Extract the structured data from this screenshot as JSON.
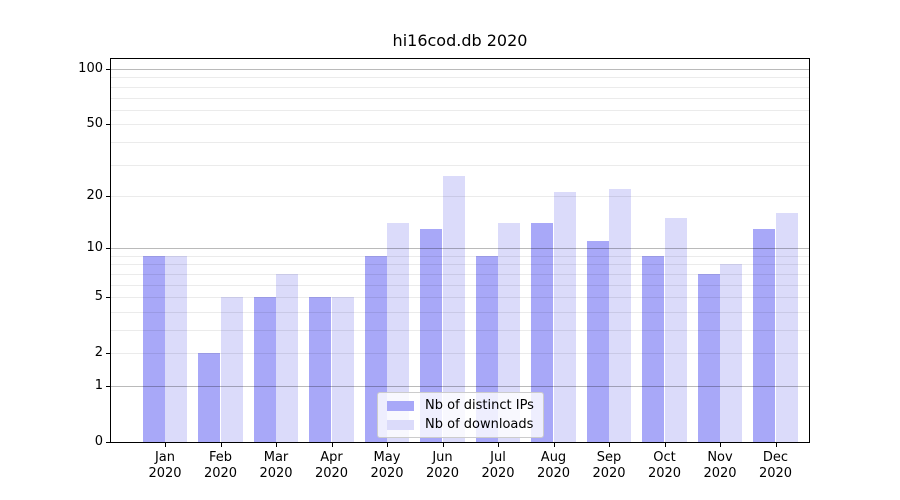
{
  "chart_data": {
    "type": "bar",
    "title": "hi16cod.db 2020",
    "categories": [
      "Jan",
      "Feb",
      "Mar",
      "Apr",
      "May",
      "Jun",
      "Jul",
      "Aug",
      "Sep",
      "Oct",
      "Nov",
      "Dec"
    ],
    "year_label": "2020",
    "series": [
      {
        "name": "Nb of distinct IPs",
        "color": "#a8a8f8",
        "values": [
          9,
          2,
          5,
          5,
          9,
          13,
          9,
          14,
          11,
          9,
          7,
          13
        ]
      },
      {
        "name": "Nb of downloads",
        "color": "#dbdbfa",
        "values": [
          9,
          5,
          7,
          5,
          14,
          26,
          14,
          21,
          22,
          15,
          8,
          16
        ]
      }
    ],
    "y_axis": {
      "scale": "log10(1+value)",
      "tick_values": [
        0,
        1,
        2,
        5,
        10,
        20,
        50,
        100
      ],
      "major_gridlines": [
        1,
        10,
        100
      ],
      "minor_gridlines": [
        2,
        3,
        4,
        5,
        6,
        7,
        8,
        9,
        20,
        30,
        40,
        50,
        60,
        70,
        80,
        90
      ],
      "ylim": [
        0,
        116
      ]
    },
    "xlabel": "",
    "ylabel": "",
    "grid": "horizontal",
    "legend_position": "lower center, inside plot"
  },
  "colors": {
    "bar_distinct_ips": "#a8a8f8",
    "bar_downloads": "#dbdbfa",
    "spine": "#000000",
    "major_grid": "rgba(0,0,0,0.27)",
    "minor_grid": "rgba(0,0,0,0.08)",
    "background": "#ffffff",
    "legend_border": "#cccccc"
  }
}
